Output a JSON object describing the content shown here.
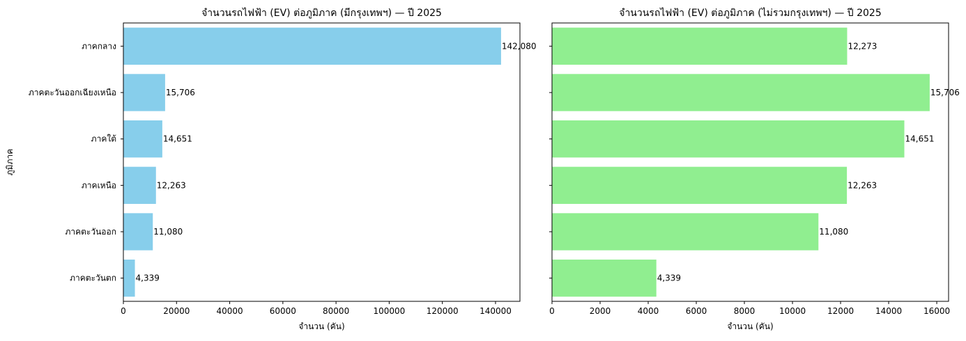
{
  "chart_data": [
    {
      "type": "bar",
      "orientation": "horizontal",
      "title": "จำนวนรถไฟฟ้า (EV) ต่อภูมิภาค (มีกรุงเทพฯ) — ปี 2025",
      "xlabel": "จำนวน (คัน)",
      "ylabel": "ภูมิภาค",
      "categories": [
        "ภาคกลาง",
        "ภาคตะวันออกเฉียงเหนือ",
        "ภาคใต้",
        "ภาคเหนือ",
        "ภาคตะวันออก",
        "ภาคตะวันตก"
      ],
      "values": [
        142080,
        15706,
        14651,
        12263,
        11080,
        4339
      ],
      "data_labels": [
        "142,080",
        "15,706",
        "14,651",
        "12,263",
        "11,080",
        "4,339"
      ],
      "xlim": [
        0,
        149184
      ],
      "xticks": [
        0,
        20000,
        40000,
        60000,
        80000,
        100000,
        120000,
        140000
      ],
      "xtick_labels": [
        "0",
        "20000",
        "40000",
        "60000",
        "80000",
        "100000",
        "120000",
        "140000"
      ],
      "color": "#87CEEB",
      "grid": false
    },
    {
      "type": "bar",
      "orientation": "horizontal",
      "title": "จำนวนรถไฟฟ้า (EV) ต่อภูมิภาค (ไม่รวมกรุงเทพฯ) — ปี 2025",
      "xlabel": "จำนวน (คัน)",
      "ylabel": "",
      "categories": [
        "ภาคกลาง",
        "ภาคตะวันออกเฉียงเหนือ",
        "ภาคใต้",
        "ภาคเหนือ",
        "ภาคตะวันออก",
        "ภาคตะวันตก"
      ],
      "values": [
        12273,
        15706,
        14651,
        12263,
        11080,
        4339
      ],
      "data_labels": [
        "12,273",
        "15,706",
        "14,651",
        "12,263",
        "11,080",
        "4,339"
      ],
      "xlim": [
        0,
        16491
      ],
      "xticks": [
        0,
        2000,
        4000,
        6000,
        8000,
        10000,
        12000,
        14000,
        16000
      ],
      "xtick_labels": [
        "0",
        "2000",
        "4000",
        "6000",
        "8000",
        "10000",
        "12000",
        "14000",
        "16000"
      ],
      "color": "#90EE90",
      "grid": false
    }
  ]
}
